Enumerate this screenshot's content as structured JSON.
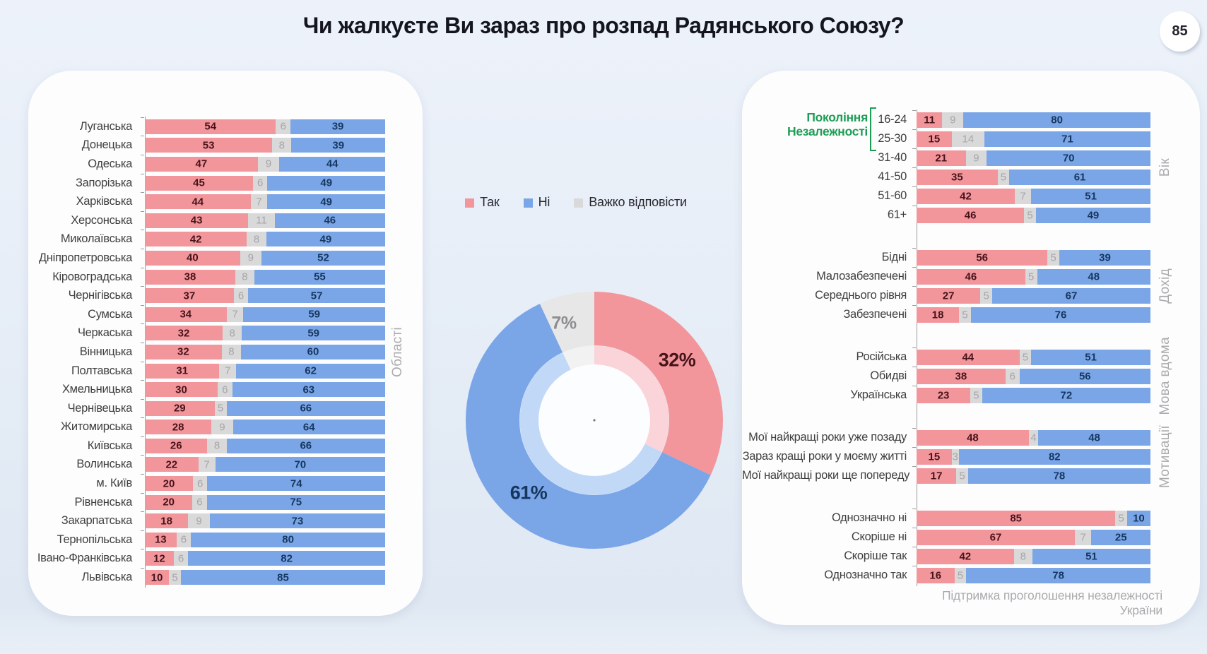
{
  "page": {
    "title": "Чи жалкуєте Ви зараз про розпад Радянського Союзу?",
    "page_number": "85"
  },
  "legend": {
    "items": [
      {
        "label": "Так",
        "color": "#F2969C"
      },
      {
        "label": "Ні",
        "color": "#7AA6E8"
      },
      {
        "label": "Важко відповісти",
        "color": "#D9D9D9"
      }
    ]
  },
  "colors": {
    "yes_fill": "#F2969C",
    "no_fill": "#7AA6E8",
    "dk_fill": "#D9D9D9",
    "donut_dk_fill": "#E7E7E7",
    "yes_fill_light": "#FAD4D8",
    "no_fill_light": "#C2D8F7",
    "dk_fill_light": "#F2F2F2",
    "yes_text": "#451419",
    "no_text": "#17365D",
    "dk_text": "#A6A6AB",
    "green": "#1E9E55",
    "axis": "#9B9B9B",
    "vlabel_text": "#ABABAE",
    "label_text": "#3F3F3F",
    "title_text": "#15151F"
  },
  "chart_data": [
    {
      "id": "oblasts",
      "type": "bar",
      "stacked": true,
      "orientation": "horizontal",
      "axis_label": "Області",
      "series_order": [
        "Так",
        "Важко відповісти",
        "Ні"
      ],
      "categories": [
        "Луганська",
        "Донецька",
        "Одеська",
        "Запорізька",
        "Харківська",
        "Херсонська",
        "Миколаївська",
        "Дніпропетровська",
        "Кіровоградська",
        "Чернігівська",
        "Сумська",
        "Черкаська",
        "Вінницька",
        "Полтавська",
        "Хмельницька",
        "Чернівецька",
        "Житомирська",
        "Київська",
        "Волинська",
        "м. Київ",
        "Рівненська",
        "Закарпатська",
        "Тернопільська",
        "Івано-Франківська",
        "Львівська"
      ],
      "rows": [
        [
          54,
          6,
          39
        ],
        [
          53,
          8,
          39
        ],
        [
          47,
          9,
          44
        ],
        [
          45,
          6,
          49
        ],
        [
          44,
          7,
          49
        ],
        [
          43,
          11,
          46
        ],
        [
          42,
          8,
          49
        ],
        [
          40,
          9,
          52
        ],
        [
          38,
          8,
          55
        ],
        [
          37,
          6,
          57
        ],
        [
          34,
          7,
          59
        ],
        [
          32,
          8,
          59
        ],
        [
          32,
          8,
          60
        ],
        [
          31,
          7,
          62
        ],
        [
          30,
          6,
          63
        ],
        [
          29,
          5,
          66
        ],
        [
          28,
          9,
          64
        ],
        [
          26,
          8,
          66
        ],
        [
          22,
          7,
          70
        ],
        [
          20,
          6,
          74
        ],
        [
          20,
          6,
          75
        ],
        [
          18,
          9,
          73
        ],
        [
          13,
          6,
          80
        ],
        [
          12,
          6,
          82
        ],
        [
          10,
          5,
          85
        ]
      ]
    },
    {
      "id": "total-donut",
      "type": "pie",
      "labels": [
        "Так",
        "Ні",
        "Важко відповісти"
      ],
      "values": [
        32,
        61,
        7
      ],
      "display_labels": [
        "32%",
        "61%",
        "7%"
      ]
    },
    {
      "id": "demographics",
      "type": "bar",
      "stacked": true,
      "orientation": "horizontal",
      "series_order": [
        "Так",
        "Важко відповісти",
        "Ні"
      ],
      "annotation": "Покоління Незалежності",
      "annotation_rows": [
        "16-24",
        "25-30"
      ],
      "groups": [
        {
          "axis_label": "Вік",
          "categories": [
            "16-24",
            "25-30",
            "31-40",
            "41-50",
            "51-60",
            "61+"
          ],
          "rows": [
            [
              11,
              9,
              80
            ],
            [
              15,
              14,
              71
            ],
            [
              21,
              9,
              70
            ],
            [
              35,
              5,
              61
            ],
            [
              42,
              7,
              51
            ],
            [
              46,
              5,
              49
            ]
          ]
        },
        {
          "axis_label": "Дохід",
          "categories": [
            "Бідні",
            "Малозабезпечені",
            "Середнього рівня",
            "Забезпечені"
          ],
          "rows": [
            [
              56,
              5,
              39
            ],
            [
              46,
              5,
              48
            ],
            [
              27,
              5,
              67
            ],
            [
              18,
              5,
              76
            ]
          ]
        },
        {
          "axis_label": "Мова вдома",
          "categories": [
            "Російська",
            "Обидві",
            "Українська"
          ],
          "rows": [
            [
              44,
              5,
              51
            ],
            [
              38,
              6,
              56
            ],
            [
              23,
              5,
              72
            ]
          ]
        },
        {
          "axis_label": "Мотивації",
          "categories": [
            "Мої найкращі роки уже позаду",
            "Зараз кращі роки у моєму житті",
            "Мої найкращі роки ще попереду"
          ],
          "rows": [
            [
              48,
              4,
              48
            ],
            [
              15,
              3,
              82
            ],
            [
              17,
              5,
              78
            ]
          ]
        },
        {
          "axis_label": "Підтримка проголошення незалежності України",
          "label_position": "bottom",
          "categories": [
            "Однозначно ні",
            "Скоріше ні",
            "Скоріше так",
            "Однозначно так"
          ],
          "rows": [
            [
              85,
              5,
              10
            ],
            [
              67,
              7,
              25
            ],
            [
              42,
              8,
              51
            ],
            [
              16,
              5,
              78
            ]
          ]
        }
      ]
    }
  ]
}
